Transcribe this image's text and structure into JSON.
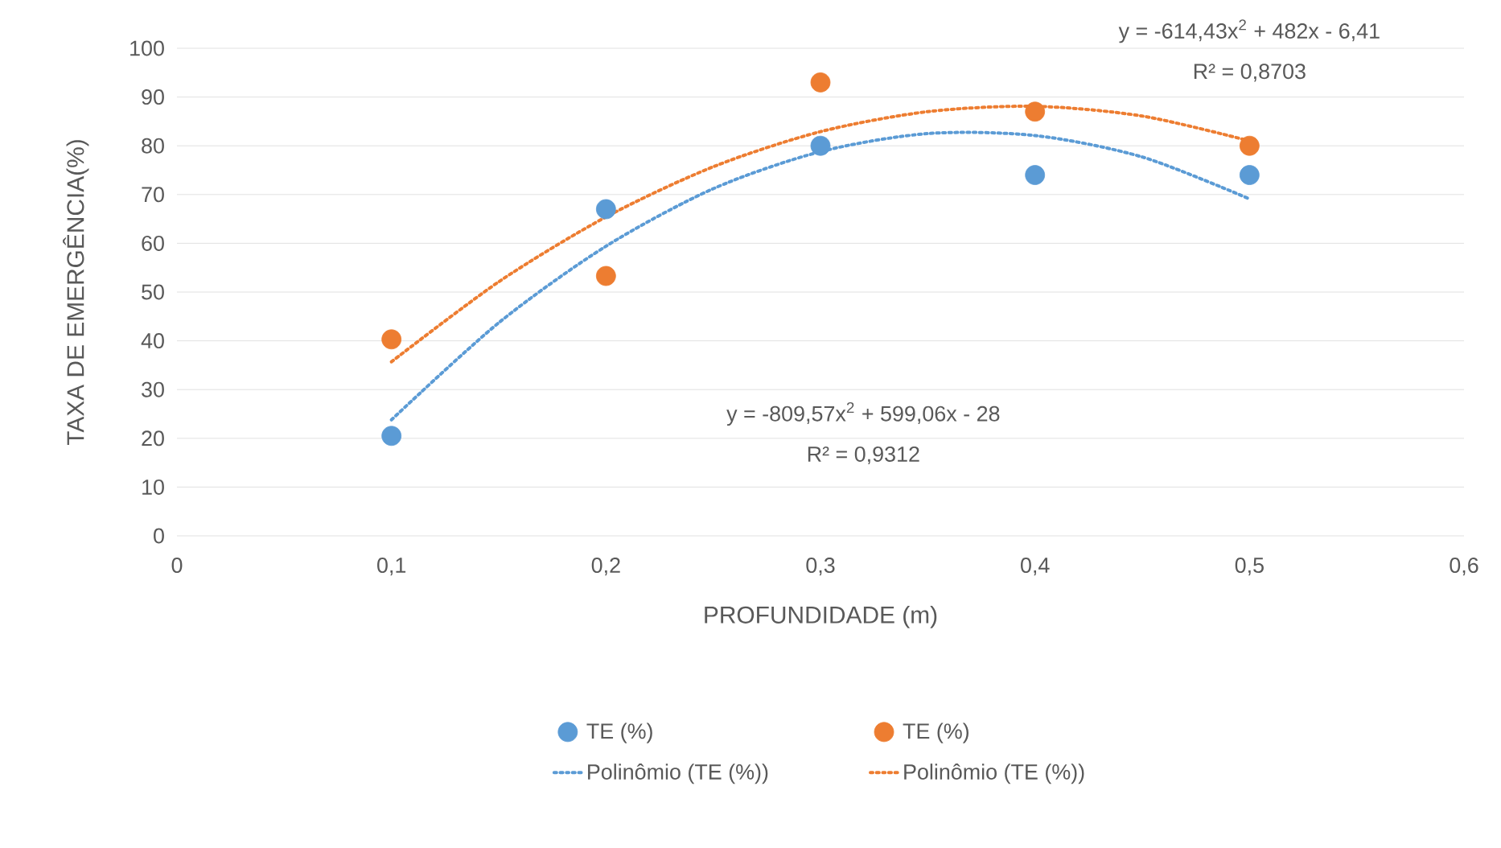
{
  "chart_data": {
    "type": "scatter",
    "xlabel": "PROFUNDIDADE (m)",
    "ylabel": "TAXA DE EMERGÊNCIA(%)",
    "xlim": [
      0,
      0.6
    ],
    "ylim": [
      0,
      100
    ],
    "xticks": [
      {
        "value": 0,
        "label": "0"
      },
      {
        "value": 0.1,
        "label": "0,1"
      },
      {
        "value": 0.2,
        "label": "0,2"
      },
      {
        "value": 0.3,
        "label": "0,3"
      },
      {
        "value": 0.4,
        "label": "0,4"
      },
      {
        "value": 0.5,
        "label": "0,5"
      },
      {
        "value": 0.6,
        "label": "0,6"
      }
    ],
    "yticks": [
      0,
      10,
      20,
      30,
      40,
      50,
      60,
      70,
      80,
      90,
      100
    ],
    "grid": "y",
    "legend": "bottom",
    "series": [
      {
        "name": "TE (%)",
        "marker": "circle",
        "color": "#5b9bd5",
        "x": [
          0.1,
          0.2,
          0.3,
          0.4,
          0.5
        ],
        "values": [
          20.5,
          67,
          80,
          74,
          74
        ]
      },
      {
        "name": "TE (%)",
        "marker": "circle",
        "color": "#ed7d31",
        "x": [
          0.1,
          0.2,
          0.3,
          0.4,
          0.5
        ],
        "values": [
          40.3,
          53.3,
          93,
          87,
          80
        ]
      },
      {
        "name": "Polinômio (TE (%))",
        "type": "line",
        "line_style": "dotted",
        "color": "#5b9bd5",
        "x": [
          0.1,
          0.15,
          0.2,
          0.25,
          0.3,
          0.35,
          0.4,
          0.45,
          0.5
        ],
        "values": [
          23.8,
          43.7,
          59.4,
          71.2,
          78.8,
          82.5,
          82.1,
          77.7,
          69.1
        ]
      },
      {
        "name": "Polinômio (TE (%))",
        "type": "line",
        "line_style": "dotted",
        "color": "#ed7d31",
        "x": [
          0.1,
          0.15,
          0.2,
          0.25,
          0.3,
          0.35,
          0.4,
          0.45,
          0.5
        ],
        "values": [
          35.7,
          52.1,
          65.4,
          75.7,
          82.9,
          87.0,
          88.1,
          86.1,
          81.0
        ]
      }
    ],
    "annotations": [
      "y = -614,43x$^{2}$ + 482x - 6,41",
      "R² = 0,8703",
      "y = -809,57x$^{2}$ + 599,06x - 28",
      "R² = 0,9312"
    ]
  }
}
